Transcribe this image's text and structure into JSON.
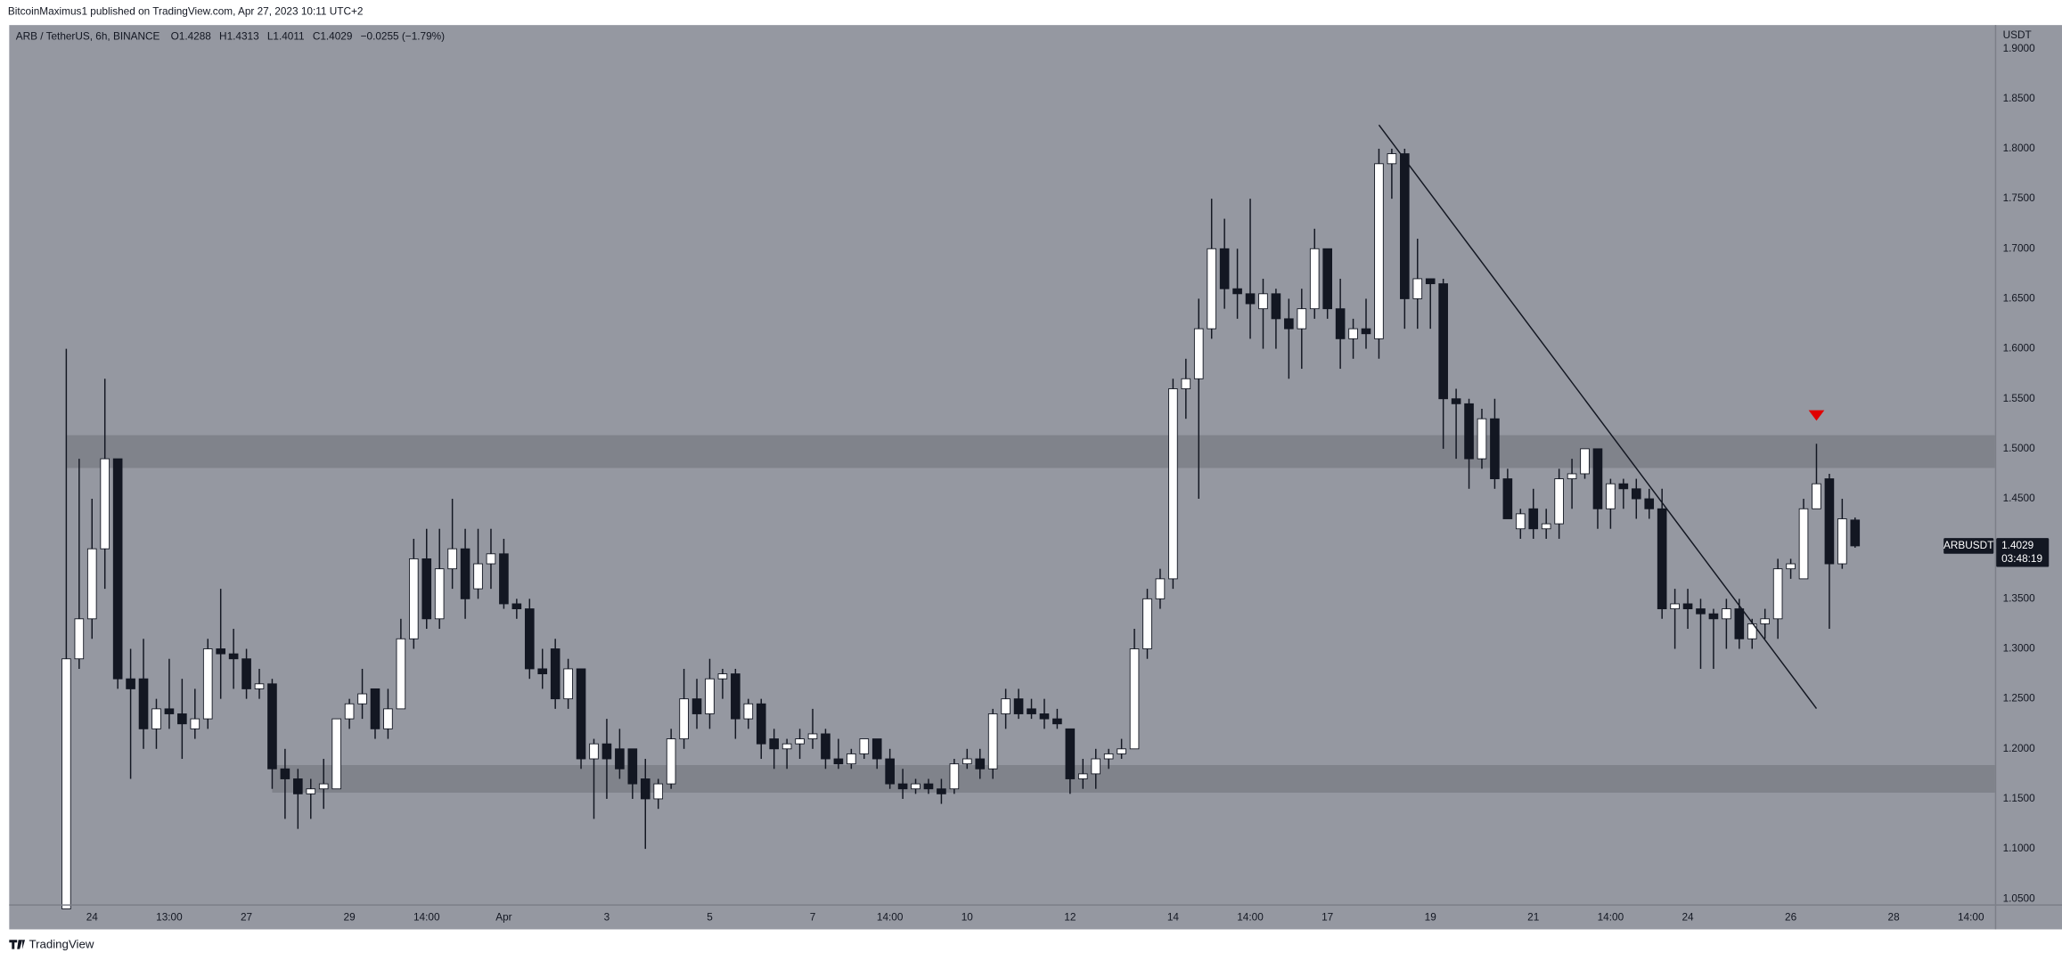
{
  "header": {
    "publisher": "BitcoinMaximus1 published on TradingView.com, Apr 27, 2023 10:11 UTC+2",
    "symbol": "ARB / TetherUS, 6h, BINANCE",
    "ohlc": [
      {
        "label": "O",
        "value": 1.4288
      },
      {
        "label": "H",
        "value": 1.4313
      },
      {
        "label": "L",
        "value": 1.4011
      },
      {
        "label": "C",
        "value": 1.4029
      }
    ],
    "change": "−0.0255 (−1.79%)"
  },
  "chart_data": {
    "type": "candlestick",
    "y_axis_label": "USDT",
    "categories": [
      null,
      null,
      "24",
      null,
      null,
      null,
      null,
      null,
      "13:00",
      null,
      null,
      null,
      null,
      null,
      "27",
      null,
      null,
      null,
      null,
      null,
      null,
      null,
      "29",
      null,
      null,
      null,
      null,
      null,
      "14:00",
      null,
      null,
      null,
      null,
      null,
      "Apr",
      null,
      null,
      null,
      null,
      null,
      null,
      null,
      "3",
      null,
      null,
      null,
      null,
      null,
      null,
      null,
      "5",
      null,
      null,
      null,
      null,
      null,
      null,
      null,
      "7",
      null,
      null,
      null,
      null,
      null,
      "14:00",
      null,
      null,
      null,
      null,
      null,
      "10",
      null,
      null,
      null,
      null,
      null,
      null,
      null,
      "12",
      null,
      null,
      null,
      null,
      null,
      null,
      null,
      "14",
      null,
      null,
      null,
      null,
      null,
      "14:00",
      null,
      null,
      null,
      null,
      null,
      "17",
      null,
      null,
      null,
      null,
      null,
      null,
      null,
      "19",
      null,
      null,
      null,
      null,
      null,
      null,
      null,
      "21",
      null,
      null,
      null,
      null,
      null,
      "14:00",
      null,
      null,
      null,
      null,
      null,
      "24",
      null,
      null,
      null,
      null,
      null,
      null,
      null,
      "26",
      null,
      null,
      null,
      null,
      null,
      null,
      null,
      "28",
      null,
      null,
      null,
      null,
      null,
      "14:00"
    ],
    "open": [
      1.04,
      1.29,
      1.33,
      1.4,
      1.49,
      1.27,
      1.27,
      1.22,
      1.24,
      1.235,
      1.22,
      1.23,
      1.3,
      1.295,
      1.29,
      1.26,
      1.265,
      1.18,
      1.17,
      1.155,
      1.16,
      1.16,
      1.23,
      1.245,
      1.26,
      1.22,
      1.24,
      1.31,
      1.39,
      1.33,
      1.38,
      1.4,
      1.36,
      1.385,
      1.395,
      1.345,
      1.34,
      1.28,
      1.3,
      1.25,
      1.28,
      1.19,
      1.205,
      1.2,
      1.2,
      1.17,
      1.15,
      1.165,
      1.21,
      1.25,
      1.235,
      1.27,
      1.275,
      1.23,
      1.245,
      1.21,
      1.2,
      1.205,
      1.21,
      1.215,
      1.19,
      1.185,
      1.195,
      1.21,
      1.19,
      1.165,
      1.16,
      1.165,
      1.16,
      1.16,
      1.185,
      1.19,
      1.18,
      1.235,
      1.25,
      1.24,
      1.235,
      1.23,
      1.22,
      1.17,
      1.175,
      1.19,
      1.195,
      1.2,
      1.3,
      1.35,
      1.37,
      1.56,
      1.57,
      1.62,
      1.7,
      1.66,
      1.655,
      1.64,
      1.655,
      1.63,
      1.62,
      1.64,
      1.7,
      1.64,
      1.61,
      1.62,
      1.61,
      1.785,
      1.795,
      1.65,
      1.67,
      1.665,
      1.55,
      1.545,
      1.49,
      1.53,
      1.47,
      1.42,
      1.44,
      1.42,
      1.425,
      1.47,
      1.475,
      1.5,
      1.44,
      1.465,
      1.46,
      1.45,
      1.44,
      1.34,
      1.345,
      1.34,
      1.335,
      1.33,
      1.34,
      1.31,
      1.325,
      1.33,
      1.38,
      1.37,
      1.44,
      1.47,
      1.385,
      1.4288,
      null,
      null,
      null,
      null,
      null,
      null,
      null,
      null,
      null
    ],
    "high": [
      1.6,
      1.49,
      1.45,
      1.57,
      1.49,
      1.3,
      1.31,
      1.25,
      1.29,
      1.27,
      1.26,
      1.31,
      1.36,
      1.32,
      1.3,
      1.28,
      1.27,
      1.2,
      1.18,
      1.17,
      1.19,
      1.23,
      1.25,
      1.28,
      1.26,
      1.26,
      1.33,
      1.41,
      1.42,
      1.42,
      1.45,
      1.42,
      1.42,
      1.42,
      1.41,
      1.35,
      1.35,
      1.3,
      1.31,
      1.29,
      1.28,
      1.21,
      1.23,
      1.22,
      1.2,
      1.19,
      1.17,
      1.22,
      1.28,
      1.27,
      1.29,
      1.28,
      1.28,
      1.25,
      1.25,
      1.22,
      1.21,
      1.22,
      1.24,
      1.22,
      1.21,
      1.2,
      1.21,
      1.21,
      1.2,
      1.18,
      1.17,
      1.17,
      1.17,
      1.19,
      1.2,
      1.2,
      1.24,
      1.26,
      1.26,
      1.25,
      1.25,
      1.24,
      1.22,
      1.19,
      1.2,
      1.2,
      1.21,
      1.32,
      1.36,
      1.38,
      1.57,
      1.59,
      1.65,
      1.75,
      1.73,
      1.7,
      1.75,
      1.67,
      1.66,
      1.65,
      1.66,
      1.72,
      1.7,
      1.67,
      1.63,
      1.65,
      1.8,
      1.8,
      1.8,
      1.71,
      1.67,
      1.67,
      1.56,
      1.55,
      1.54,
      1.55,
      1.48,
      1.44,
      1.46,
      1.44,
      1.48,
      1.49,
      1.5,
      1.5,
      1.47,
      1.47,
      1.47,
      1.46,
      1.46,
      1.36,
      1.36,
      1.35,
      1.34,
      1.35,
      1.35,
      1.33,
      1.34,
      1.39,
      1.39,
      1.45,
      1.505,
      1.475,
      1.45,
      1.4313,
      null,
      null,
      null,
      null,
      null,
      null,
      null,
      null,
      null
    ],
    "low": [
      1.04,
      1.28,
      1.31,
      1.36,
      1.26,
      1.17,
      1.2,
      1.2,
      1.22,
      1.19,
      1.21,
      1.22,
      1.25,
      1.26,
      1.25,
      1.25,
      1.16,
      1.13,
      1.12,
      1.13,
      1.14,
      1.16,
      1.22,
      1.23,
      1.21,
      1.21,
      1.24,
      1.3,
      1.32,
      1.32,
      1.36,
      1.33,
      1.35,
      1.36,
      1.34,
      1.33,
      1.27,
      1.26,
      1.24,
      1.24,
      1.18,
      1.13,
      1.15,
      1.17,
      1.15,
      1.1,
      1.14,
      1.16,
      1.2,
      1.22,
      1.22,
      1.25,
      1.21,
      1.22,
      1.19,
      1.18,
      1.18,
      1.19,
      1.2,
      1.18,
      1.18,
      1.18,
      1.19,
      1.18,
      1.16,
      1.15,
      1.155,
      1.155,
      1.145,
      1.155,
      1.18,
      1.17,
      1.17,
      1.22,
      1.23,
      1.23,
      1.22,
      1.22,
      1.155,
      1.16,
      1.16,
      1.18,
      1.19,
      1.2,
      1.29,
      1.34,
      1.36,
      1.53,
      1.45,
      1.61,
      1.64,
      1.63,
      1.61,
      1.6,
      1.6,
      1.57,
      1.58,
      1.63,
      1.63,
      1.58,
      1.59,
      1.6,
      1.59,
      1.75,
      1.62,
      1.62,
      1.62,
      1.5,
      1.49,
      1.46,
      1.48,
      1.46,
      1.43,
      1.41,
      1.41,
      1.41,
      1.41,
      1.44,
      1.47,
      1.42,
      1.42,
      1.44,
      1.43,
      1.43,
      1.33,
      1.3,
      1.32,
      1.28,
      1.28,
      1.3,
      1.3,
      1.3,
      1.31,
      1.31,
      1.37,
      1.37,
      1.44,
      1.32,
      1.38,
      1.4011,
      null,
      null,
      null,
      null,
      null,
      null,
      null,
      null,
      null
    ],
    "close": [
      1.29,
      1.33,
      1.4,
      1.49,
      1.27,
      1.26,
      1.22,
      1.24,
      1.235,
      1.225,
      1.23,
      1.3,
      1.295,
      1.29,
      1.26,
      1.265,
      1.18,
      1.17,
      1.155,
      1.16,
      1.165,
      1.23,
      1.245,
      1.255,
      1.22,
      1.24,
      1.31,
      1.39,
      1.33,
      1.38,
      1.4,
      1.35,
      1.385,
      1.395,
      1.345,
      1.34,
      1.28,
      1.275,
      1.25,
      1.28,
      1.19,
      1.205,
      1.19,
      1.18,
      1.165,
      1.15,
      1.165,
      1.21,
      1.25,
      1.235,
      1.27,
      1.275,
      1.23,
      1.245,
      1.205,
      1.2,
      1.205,
      1.21,
      1.215,
      1.19,
      1.185,
      1.195,
      1.21,
      1.19,
      1.165,
      1.16,
      1.165,
      1.16,
      1.155,
      1.185,
      1.19,
      1.18,
      1.235,
      1.25,
      1.235,
      1.235,
      1.23,
      1.225,
      1.17,
      1.175,
      1.19,
      1.195,
      1.2,
      1.3,
      1.35,
      1.37,
      1.56,
      1.57,
      1.62,
      1.7,
      1.66,
      1.655,
      1.645,
      1.655,
      1.63,
      1.62,
      1.64,
      1.7,
      1.64,
      1.61,
      1.62,
      1.615,
      1.785,
      1.795,
      1.65,
      1.67,
      1.665,
      1.55,
      1.545,
      1.49,
      1.53,
      1.47,
      1.43,
      1.435,
      1.42,
      1.425,
      1.47,
      1.475,
      1.5,
      1.44,
      1.465,
      1.46,
      1.45,
      1.44,
      1.34,
      1.345,
      1.34,
      1.335,
      1.33,
      1.34,
      1.31,
      1.325,
      1.33,
      1.38,
      1.385,
      1.44,
      1.465,
      1.385,
      1.43,
      1.4029,
      null,
      null,
      null,
      null,
      null,
      null,
      null,
      null,
      null
    ],
    "up_color": "#ffffff",
    "down_color": "#131722",
    "ylim": [
      1.0445,
      1.9223
    ],
    "yticks": [
      {
        "value": 1.05,
        "label": "1.0500"
      },
      {
        "value": 1.1,
        "label": "1.1000"
      },
      {
        "value": 1.15,
        "label": "1.1500"
      },
      {
        "value": 1.2,
        "label": "1.2000"
      },
      {
        "value": 1.25,
        "label": "1.2500"
      },
      {
        "value": 1.3,
        "label": "1.3000"
      },
      {
        "value": 1.35,
        "label": "1.3500"
      },
      {
        "value": 1.4,
        "label": "1.4000"
      },
      {
        "value": 1.45,
        "label": "1.4500"
      },
      {
        "value": 1.5,
        "label": "1.5000"
      },
      {
        "value": 1.55,
        "label": "1.5500"
      },
      {
        "value": 1.6,
        "label": "1.6000"
      },
      {
        "value": 1.65,
        "label": "1.6500"
      },
      {
        "value": 1.7,
        "label": "1.7000"
      },
      {
        "value": 1.75,
        "label": "1.7500"
      },
      {
        "value": 1.8,
        "label": "1.8000"
      },
      {
        "value": 1.85,
        "label": "1.8500"
      },
      {
        "value": 1.9,
        "label": "1.9000"
      }
    ],
    "grid": false,
    "zones": [
      {
        "x0": 0,
        "y0": 1.4808,
        "y1": 1.5136,
        "color": "#80838b"
      },
      {
        "x0": 16,
        "y0": 1.1562,
        "y1": 1.1838,
        "color": "#80838b"
      }
    ],
    "trendline": {
      "x": [
        102,
        136
      ],
      "y": [
        1.8237,
        1.2403
      ],
      "color": "#131722"
    },
    "signal": {
      "x": 136,
      "y": 1.5333,
      "color": "#e00000"
    },
    "price_label": {
      "symbol": "ARBUSDT",
      "value": 1.4029,
      "countdown": "03:48:19"
    }
  },
  "footer": {
    "brand": "TradingView"
  }
}
